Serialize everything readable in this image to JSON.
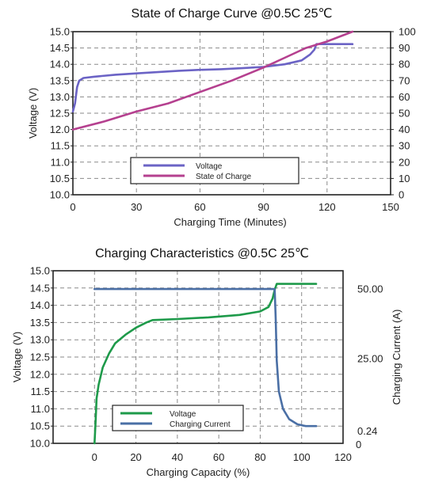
{
  "chart_data": [
    {
      "type": "line",
      "title": "State of Charge Curve @0.5C 25℃",
      "xlabel": "Charging Time (Minutes)",
      "ylabel": "Voltage (V)",
      "y2label": "",
      "xlim": [
        0,
        150
      ],
      "ylim": [
        10.0,
        15.0
      ],
      "y2lim": [
        0,
        100
      ],
      "x_ticks": [
        "0",
        "30",
        "60",
        "90",
        "120",
        "150"
      ],
      "y_ticks": [
        "10.0",
        "10.5",
        "11.0",
        "11.5",
        "12.0",
        "12.5",
        "13.0",
        "13.5",
        "14.0",
        "14.5",
        "15.0"
      ],
      "y2_ticks": [
        "0",
        "10",
        "20",
        "30",
        "40",
        "50",
        "60",
        "70",
        "80",
        "90",
        "100"
      ],
      "grid": true,
      "legend_position": "bottom-center",
      "series": [
        {
          "name": "Voltage",
          "axis": "left",
          "color": "#6b63c5",
          "points": [
            [
              0,
              12.55
            ],
            [
              1,
              12.8
            ],
            [
              2,
              13.3
            ],
            [
              3,
              13.5
            ],
            [
              5,
              13.58
            ],
            [
              10,
              13.62
            ],
            [
              20,
              13.68
            ],
            [
              30,
              13.72
            ],
            [
              40,
              13.76
            ],
            [
              50,
              13.8
            ],
            [
              60,
              13.83
            ],
            [
              70,
              13.85
            ],
            [
              80,
              13.88
            ],
            [
              90,
              13.92
            ],
            [
              100,
              14.0
            ],
            [
              108,
              14.12
            ],
            [
              112,
              14.3
            ],
            [
              114,
              14.45
            ],
            [
              115,
              14.62
            ],
            [
              120,
              14.62
            ],
            [
              125,
              14.62
            ],
            [
              132,
              14.62
            ]
          ]
        },
        {
          "name": "State of Charge",
          "axis": "right",
          "color": "#b5408f",
          "points": [
            [
              0,
              40
            ],
            [
              15,
              45
            ],
            [
              30,
              51
            ],
            [
              45,
              56
            ],
            [
              60,
              63
            ],
            [
              75,
              70
            ],
            [
              90,
              78
            ],
            [
              100,
              84
            ],
            [
              110,
              90
            ],
            [
              120,
              94
            ],
            [
              132,
              100
            ]
          ]
        }
      ]
    },
    {
      "type": "line",
      "title": "Charging Characteristics @0.5C 25℃",
      "xlabel": "Charging Capacity (%)",
      "ylabel": "Voltage (V)",
      "y2label": "Charging Current (A)",
      "xlim": [
        -20,
        120
      ],
      "ylim": [
        10.0,
        15.0
      ],
      "x_ticks": [
        "0",
        "20",
        "40",
        "60",
        "80",
        "100",
        "120"
      ],
      "y_ticks": [
        "10.0",
        "10.5",
        "11.0",
        "11.5",
        "12.0",
        "12.5",
        "13.0",
        "13.5",
        "14.0",
        "14.5",
        "15.0"
      ],
      "y2_ticks": [
        "50.00",
        "25.00",
        "0.24",
        "0"
      ],
      "grid": true,
      "legend_position": "bottom-left",
      "series": [
        {
          "name": "Voltage",
          "axis": "left",
          "color": "#1e9a4a",
          "points": [
            [
              0,
              10.0
            ],
            [
              0.5,
              10.6
            ],
            [
              1,
              11.3
            ],
            [
              2,
              11.7
            ],
            [
              4,
              12.2
            ],
            [
              7,
              12.6
            ],
            [
              10,
              12.9
            ],
            [
              15,
              13.15
            ],
            [
              20,
              13.35
            ],
            [
              25,
              13.5
            ],
            [
              28,
              13.57
            ],
            [
              40,
              13.6
            ],
            [
              55,
              13.65
            ],
            [
              70,
              13.72
            ],
            [
              80,
              13.82
            ],
            [
              84,
              13.95
            ],
            [
              86,
              14.2
            ],
            [
              87,
              14.45
            ],
            [
              88,
              14.62
            ],
            [
              95,
              14.62
            ],
            [
              107,
              14.62
            ]
          ]
        },
        {
          "name": "Charging Current",
          "axis": "right",
          "color": "#4a6fa5",
          "points": [
            [
              0,
              14.47
            ],
            [
              20,
              14.47
            ],
            [
              40,
              14.47
            ],
            [
              60,
              14.47
            ],
            [
              80,
              14.47
            ],
            [
              87,
              14.47
            ],
            [
              87.5,
              13.6
            ],
            [
              88,
              12.4
            ],
            [
              89,
              11.5
            ],
            [
              91,
              11.0
            ],
            [
              94,
              10.7
            ],
            [
              98,
              10.55
            ],
            [
              102,
              10.5
            ],
            [
              107,
              10.5
            ]
          ]
        }
      ]
    }
  ]
}
